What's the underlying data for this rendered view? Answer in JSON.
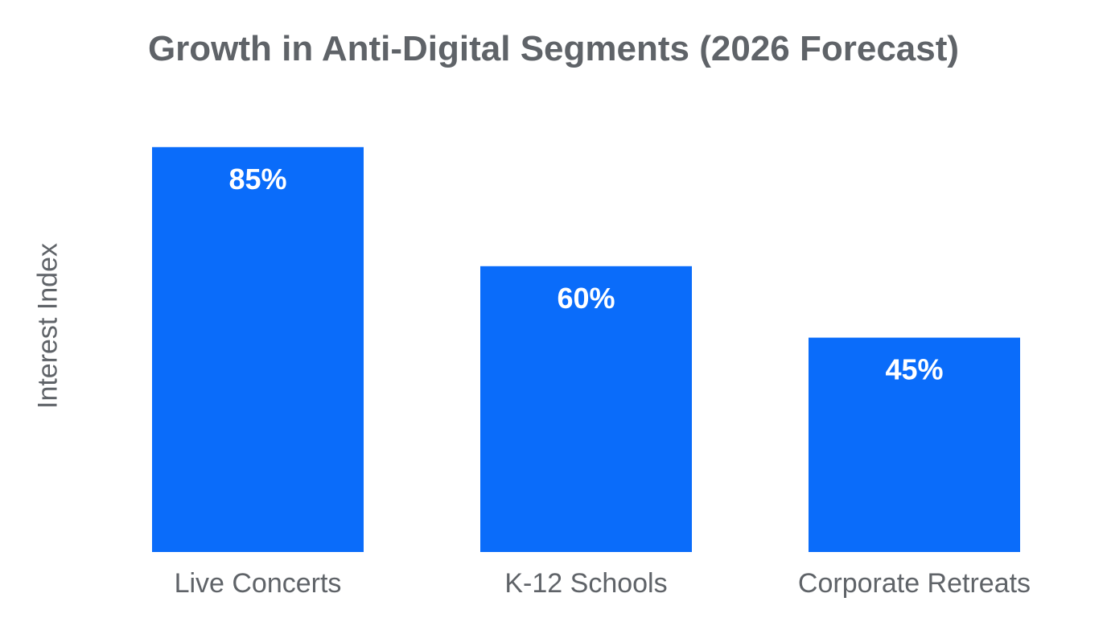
{
  "chart_data": {
    "type": "bar",
    "title": "Growth in Anti-Digital Segments (2026 Forecast)",
    "xlabel": "",
    "ylabel": "Interest Index",
    "categories": [
      "Live Concerts",
      "K-12 Schools",
      "Corporate Retreats"
    ],
    "values": [
      85,
      60,
      45
    ],
    "data_labels": [
      "85%",
      "60%",
      "45%"
    ],
    "ylim": [
      0,
      100
    ],
    "grid": false,
    "legend": "none",
    "bar_color": "#0a6cfa"
  }
}
